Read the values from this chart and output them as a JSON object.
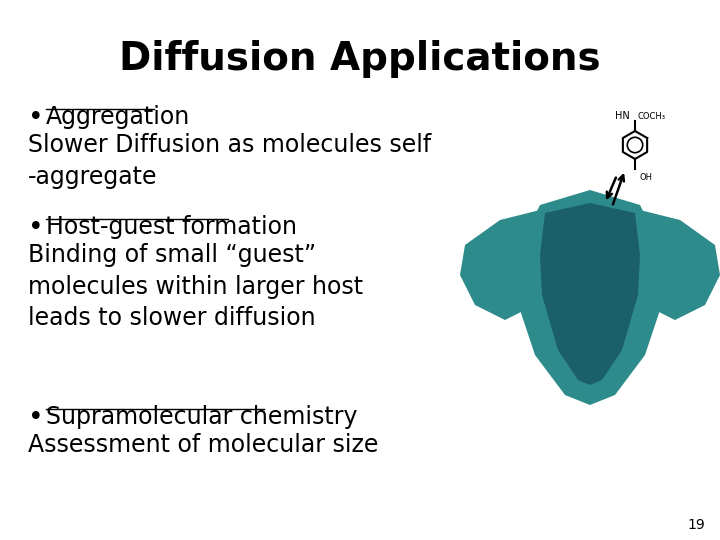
{
  "title": "Diffusion Applications",
  "title_fontsize": 28,
  "title_fontweight": "bold",
  "background_color": "#ffffff",
  "text_color": "#000000",
  "bullet1_label": "Aggregation",
  "bullet1_body": "Slower Diffusion as molecules self\n-aggregate",
  "bullet2_label": "Host-guest formation",
  "bullet2_body": "Binding of small “guest”\nmolecules within larger host\nleads to slower diffusion",
  "bullet3_label": "Supramolecular chemistry",
  "bullet3_body": "Assessment of molecular size",
  "page_number": "19",
  "body_fontsize": 17,
  "bullet_fontsize": 17,
  "teal_color": "#2e8b8b",
  "teal_dark": "#1a5f6a"
}
